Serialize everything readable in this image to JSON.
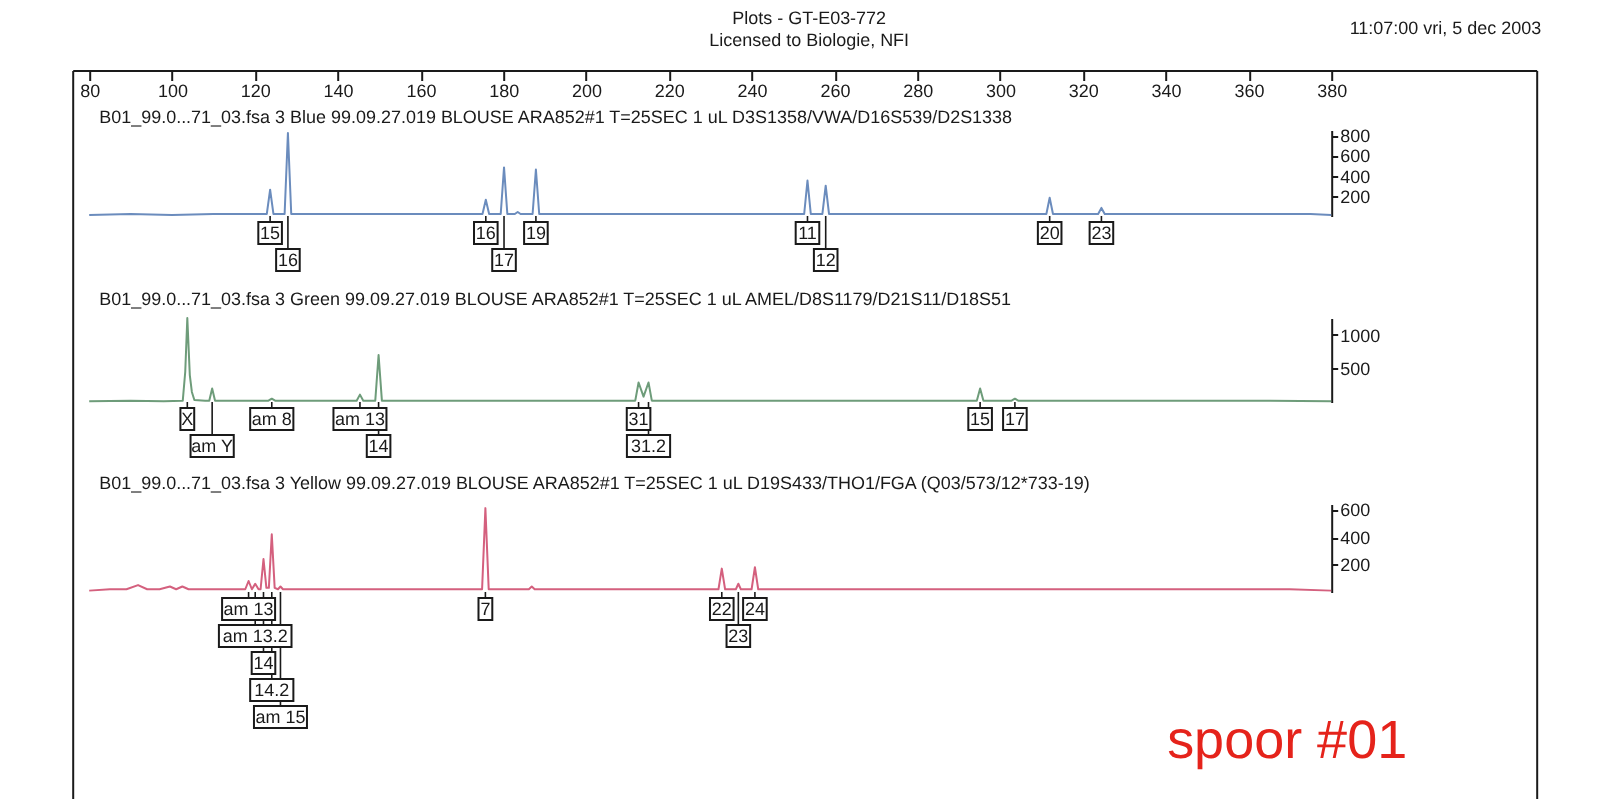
{
  "chart_data": [
    {
      "type": "other",
      "title": "Plots - GT-E03-772",
      "subtitle": "Licensed to Biologie, NFI",
      "annotations": [
        "11:07:00 vri, 5 dec 2003"
      ]
    },
    {
      "type": "line",
      "title": "B01_99.0...71_03.fsa 3 Blue 99.09.27.019 BLOUSE ARA852#1 T=25SEC 1 uL D3S1358/VWA/D16S539/D2S1338",
      "xlim": [
        80,
        380
      ],
      "xticks": [
        80,
        100,
        120,
        140,
        160,
        180,
        200,
        220,
        240,
        260,
        280,
        300,
        320,
        340,
        360,
        380
      ],
      "ylim": [
        0,
        850
      ],
      "yticks": [
        200,
        400,
        600,
        800
      ],
      "x": [
        80,
        90,
        100,
        110,
        118,
        122.9,
        123.7,
        124.5,
        127.2,
        128.0,
        128.8,
        135,
        145,
        155,
        165,
        172,
        175.0,
        175.8,
        176.6,
        179.4,
        180.2,
        181.0,
        182.8,
        183.5,
        184.2,
        187.1,
        187.9,
        188.7,
        195,
        205,
        215,
        225,
        235,
        245,
        252.7,
        253.5,
        254.3,
        257.1,
        257.9,
        258.7,
        265,
        275,
        285,
        295,
        305,
        311.2,
        312.0,
        312.8,
        323.7,
        324.5,
        325.3,
        335,
        345,
        355,
        365,
        375,
        380
      ],
      "series": [
        {
          "color": "#6b8cbd",
          "values": [
            10,
            20,
            10,
            20,
            20,
            20,
            260,
            20,
            20,
            820,
            20,
            20,
            20,
            20,
            20,
            20,
            20,
            160,
            20,
            20,
            480,
            20,
            20,
            40,
            20,
            20,
            460,
            20,
            20,
            20,
            20,
            20,
            20,
            20,
            20,
            350,
            20,
            20,
            300,
            20,
            20,
            20,
            20,
            20,
            20,
            20,
            180,
            20,
            20,
            80,
            20,
            20,
            20,
            20,
            20,
            20,
            10
          ]
        }
      ],
      "annotations": [
        {
          "text": "15",
          "x": 123.7
        },
        {
          "text": "16",
          "x": 128.0
        },
        {
          "text": "16",
          "x": 175.8
        },
        {
          "text": "17",
          "x": 180.2
        },
        {
          "text": "19",
          "x": 187.9
        },
        {
          "text": "11",
          "x": 253.5
        },
        {
          "text": "12",
          "x": 257.9
        },
        {
          "text": "20",
          "x": 312.0
        },
        {
          "text": "23",
          "x": 324.5
        }
      ]
    },
    {
      "type": "line",
      "title": "B01_99.0...71_03.fsa 3 Green 99.09.27.019 BLOUSE ARA852#1 T=25SEC 1 uL AMEL/D8S1179/D21S11/D18S51",
      "xlim": [
        80,
        380
      ],
      "tick_labels": "y",
      "ylim": [
        0,
        1250
      ],
      "yticks": [
        500,
        1000
      ],
      "x": [
        80,
        90,
        98,
        102.6,
        103.2,
        103.7,
        104.3,
        104.8,
        105.4,
        108,
        109.0,
        109.7,
        110.4,
        115,
        123.3,
        124.1,
        124.9,
        130,
        140,
        144.6,
        145.4,
        146.2,
        149.1,
        149.9,
        150.7,
        160,
        170,
        180,
        190,
        200,
        205,
        211.9,
        212.7,
        213.9,
        215.1,
        215.9,
        225,
        235,
        245,
        255,
        265,
        275,
        285,
        294.4,
        295.2,
        296.0,
        302.8,
        303.6,
        304.4,
        315,
        325,
        335,
        345,
        355,
        365,
        380
      ],
      "series": [
        {
          "color": "#6e9c7a",
          "values": [
            10,
            20,
            10,
            20,
            450,
            1250,
            400,
            150,
            30,
            20,
            20,
            200,
            20,
            20,
            20,
            50,
            20,
            20,
            20,
            20,
            110,
            20,
            20,
            700,
            20,
            20,
            20,
            20,
            20,
            20,
            20,
            20,
            290,
            80,
            290,
            20,
            20,
            20,
            20,
            20,
            20,
            20,
            20,
            20,
            200,
            20,
            20,
            50,
            20,
            20,
            20,
            20,
            20,
            20,
            20,
            10
          ]
        }
      ],
      "annotations": [
        {
          "text": "X",
          "x": 103.7
        },
        {
          "text": "am Y",
          "x": 109.7
        },
        {
          "text": "am 8",
          "x": 124.1
        },
        {
          "text": "am 13",
          "x": 145.4
        },
        {
          "text": "14",
          "x": 149.9
        },
        {
          "text": "31",
          "x": 212.7
        },
        {
          "text": "31.2",
          "x": 215.1
        },
        {
          "text": "15",
          "x": 295.2
        },
        {
          "text": "17",
          "x": 303.6
        }
      ]
    },
    {
      "type": "line",
      "title": "B01_99.0...71_03.fsa 3 Yellow 99.09.27.019 BLOUSE ARA852#1 T=25SEC 1 uL D19S433/THO1/FGA (Q03/573/12*733-19)",
      "xlim": [
        80,
        380
      ],
      "tick_labels": "y",
      "ylim": [
        0,
        640
      ],
      "yticks": [
        200,
        400,
        600
      ],
      "x": [
        80,
        85,
        89,
        91.8,
        94,
        97,
        99.5,
        101,
        102.5,
        104,
        110,
        117.7,
        118.5,
        119.3,
        120.1,
        120.9,
        121.4,
        122.1,
        122.8,
        123.4,
        124.1,
        124.8,
        125.6,
        126.2,
        126.8,
        130,
        140,
        150,
        160,
        170,
        174.9,
        175.7,
        176.5,
        180,
        186.2,
        186.9,
        187.6,
        195,
        205,
        215,
        225,
        232.0,
        232.8,
        233.6,
        236.2,
        236.8,
        237.4,
        240.0,
        240.8,
        241.6,
        250,
        260,
        270,
        280,
        290,
        300,
        310,
        320,
        330,
        340,
        350,
        360,
        370,
        380
      ],
      "series": [
        {
          "color": "#d4607e",
          "values": [
            10,
            20,
            20,
            50,
            20,
            20,
            40,
            20,
            40,
            20,
            20,
            20,
            80,
            20,
            60,
            20,
            20,
            240,
            30,
            30,
            420,
            30,
            20,
            40,
            20,
            20,
            20,
            20,
            20,
            20,
            20,
            610,
            20,
            20,
            20,
            40,
            20,
            20,
            20,
            20,
            20,
            20,
            170,
            20,
            20,
            60,
            20,
            20,
            180,
            20,
            20,
            20,
            20,
            20,
            20,
            20,
            20,
            20,
            20,
            20,
            20,
            20,
            20,
            10
          ]
        }
      ],
      "annotations": [
        {
          "text": "am 13",
          "x": 118.5
        },
        {
          "text": "am 13.2",
          "x": 120.1
        },
        {
          "text": "14",
          "x": 122.1
        },
        {
          "text": "14.2",
          "x": 124.1
        },
        {
          "text": "am 15",
          "x": 126.2
        },
        {
          "text": "7",
          "x": 175.7
        },
        {
          "text": "22",
          "x": 232.8
        },
        {
          "text": "23",
          "x": 236.8
        },
        {
          "text": "24",
          "x": 240.8
        },
        "spoor #01"
      ]
    }
  ]
}
